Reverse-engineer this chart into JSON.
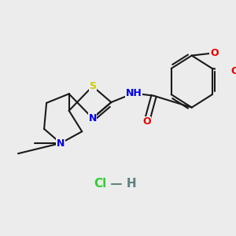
{
  "bg_color": "#ececec",
  "bond_color": "#1a1a1a",
  "bond_width": 1.5,
  "atom_colors": {
    "S": "#cccc00",
    "N": "#0000ee",
    "O": "#ee0000",
    "NH": "#0000ee",
    "H": "#555555",
    "C": "#1a1a1a",
    "HCl": "#33cc33",
    "Hdash": "#608080"
  },
  "font_size": 9,
  "salt_font_size": 11
}
